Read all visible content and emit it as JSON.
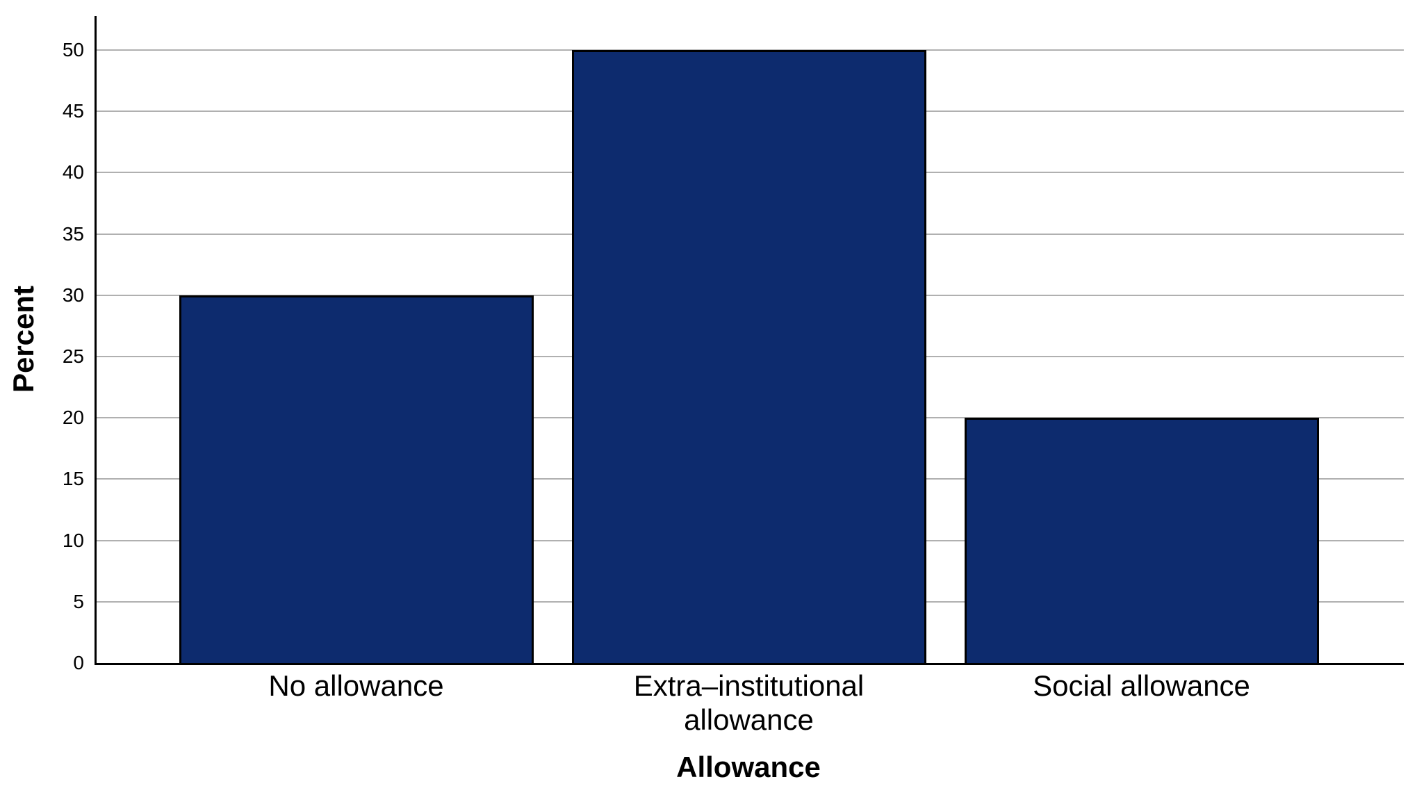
{
  "chart_data": {
    "type": "bar",
    "categories": [
      "No allowance",
      "Extra–institutional\nallowance",
      "Social allowance"
    ],
    "values": [
      30,
      50,
      20
    ],
    "xlabel": "Allowance",
    "ylabel": "Percent",
    "ylim": [
      0,
      50
    ],
    "yticks": [
      0,
      5,
      10,
      15,
      20,
      25,
      30,
      35,
      40,
      45,
      50
    ],
    "grid": "horizontal",
    "legend": "none",
    "colors": {
      "bar_fill": "#0d2b6e",
      "bar_border": "#000000",
      "gridline": "#b0b0b0",
      "axis": "#000000",
      "text": "#000000",
      "background": "#ffffff"
    }
  }
}
